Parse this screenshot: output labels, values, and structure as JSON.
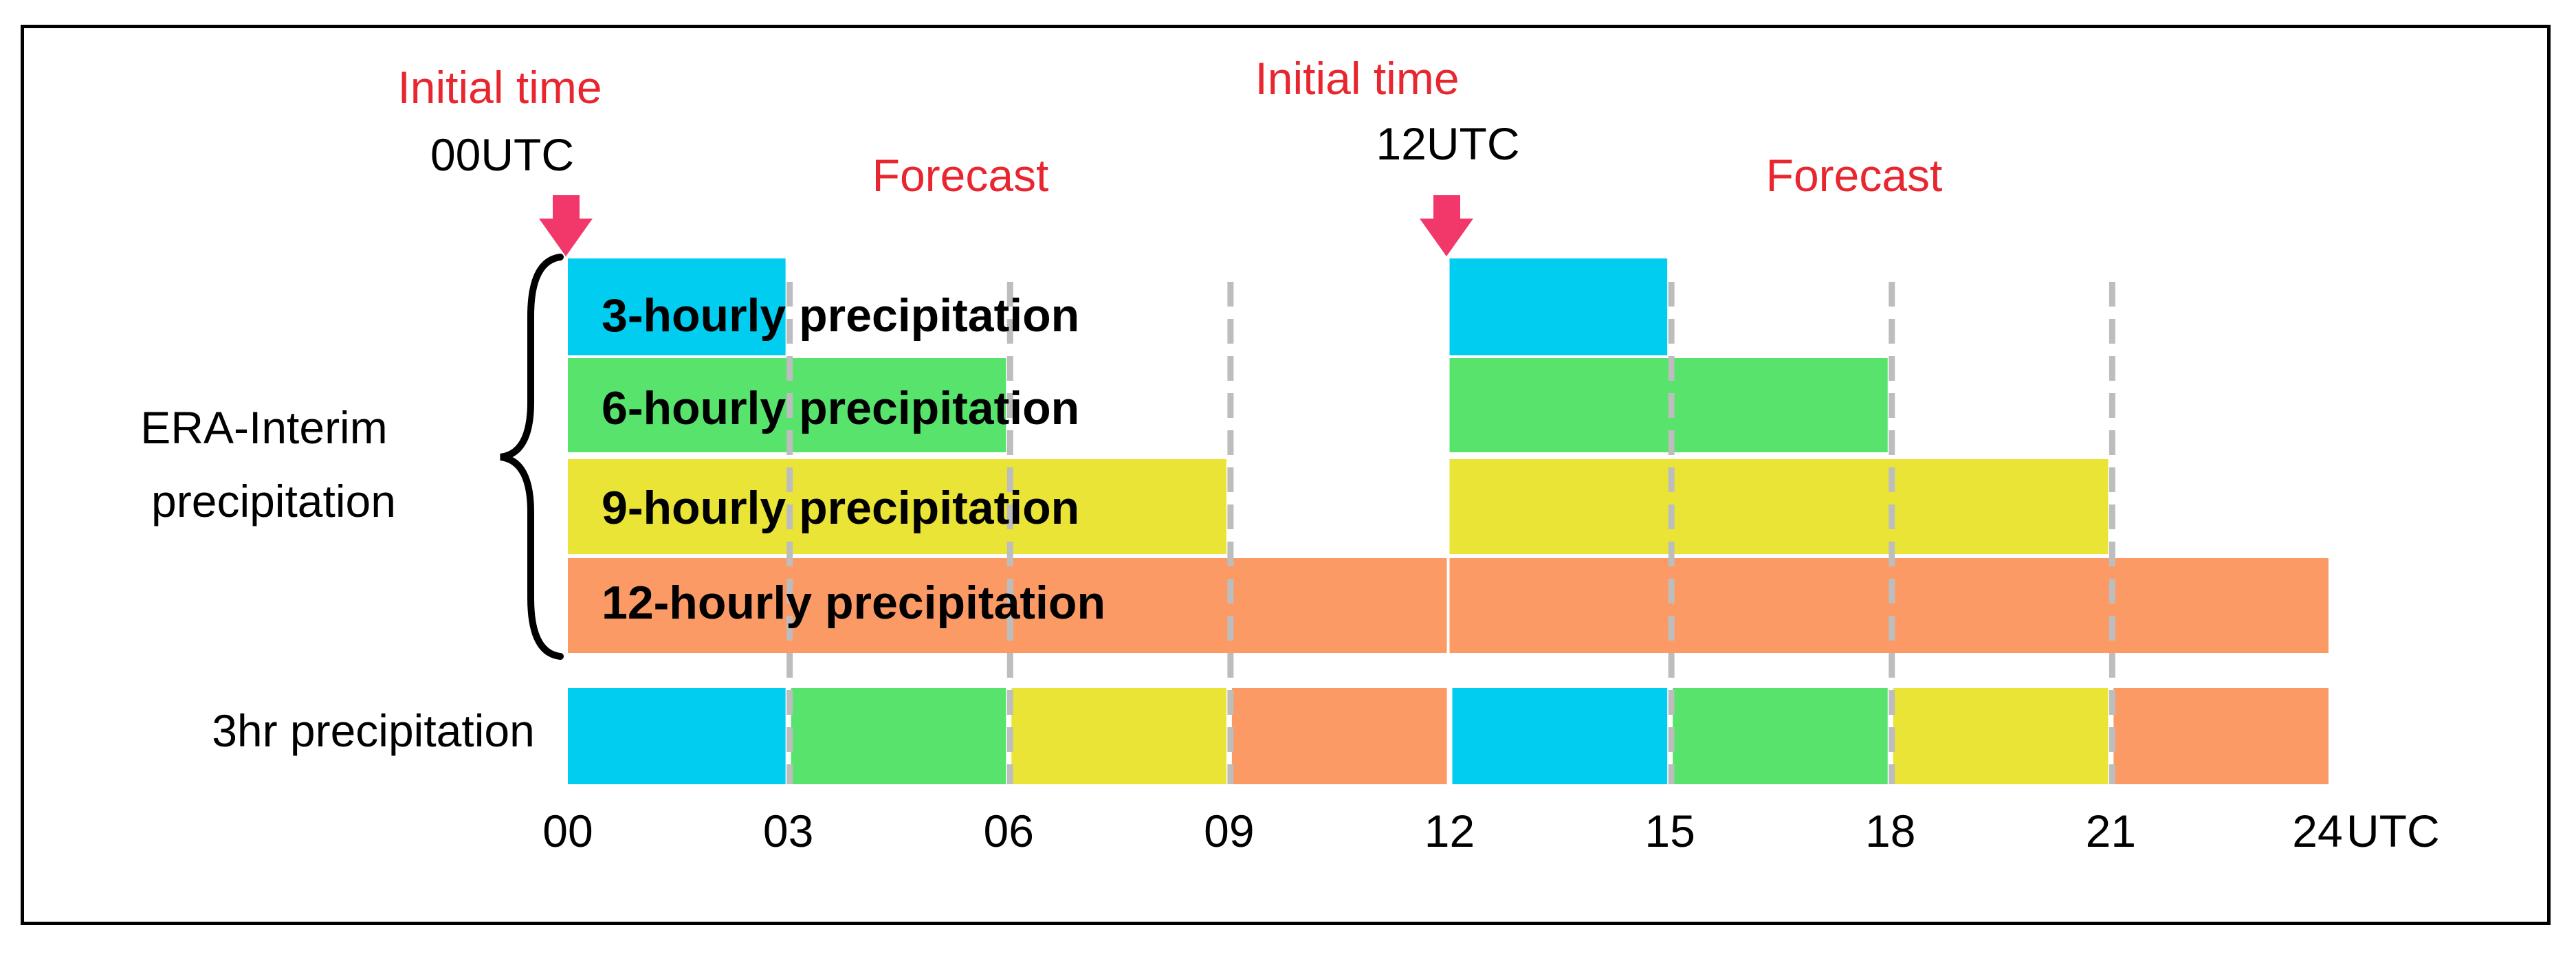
{
  "header": {
    "initial_time_label": "Initial time",
    "initial_times": [
      "00UTC",
      "12UTC"
    ],
    "forecast_label": "Forecast"
  },
  "group_label": [
    "ERA-Interim",
    "precipitation"
  ],
  "bars": [
    {
      "label": "3-hourly precipitation",
      "hours": 3,
      "color": "#00cdef"
    },
    {
      "label": "6-hourly precipitation",
      "hours": 6,
      "color": "#57e36c"
    },
    {
      "label": "9-hourly precipitation",
      "hours": 9,
      "color": "#e9e435"
    },
    {
      "label": "12-hourly precipitation",
      "hours": 12,
      "color": "#fc9a66"
    }
  ],
  "bottom_row": {
    "label": "3hr precipitation",
    "colors": [
      "#00cdef",
      "#57e36c",
      "#e9e435",
      "#fc9a66",
      "#00cdef",
      "#57e36c",
      "#e9e435",
      "#fc9a66"
    ]
  },
  "axis": {
    "ticks": [
      "00",
      "03",
      "06",
      "09",
      "12",
      "15",
      "18",
      "21",
      "24"
    ],
    "unit": "UTC"
  },
  "colors": {
    "accent": "#e8262f",
    "divider": "#bdbdbd"
  }
}
